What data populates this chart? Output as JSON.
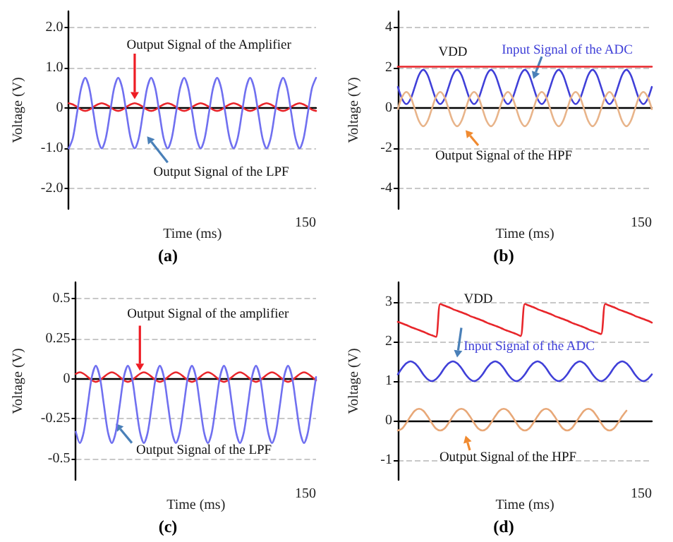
{
  "chart_data": [
    {
      "type": "line",
      "title": "(a)",
      "xlabel": "Time (ms)",
      "ylabel": "Voltage (V)",
      "annotations": [
        "150"
      ],
      "ylim": [
        -2.5,
        2.4
      ],
      "yticks": [
        {
          "value": 2,
          "label": "2.0"
        },
        {
          "value": 1,
          "label": "1.0"
        },
        0,
        {
          "value": -1,
          "label": "-1.0"
        },
        {
          "value": -2,
          "label": "-2.0"
        }
      ],
      "grid": "y",
      "categories": [
        null,
        null,
        null,
        null,
        null,
        null,
        null,
        null,
        null,
        null,
        null,
        null,
        null,
        null,
        null,
        null,
        null,
        null,
        null,
        null,
        null,
        null,
        null,
        null,
        null,
        null,
        null,
        null,
        null,
        null,
        null,
        null,
        null,
        null,
        null,
        null,
        null,
        null,
        null,
        null,
        null,
        null,
        null,
        null,
        null,
        null,
        null,
        null,
        null,
        null,
        null,
        null,
        null,
        null,
        null,
        null,
        null,
        null,
        null,
        null,
        null
      ],
      "series": [
        {
          "name": "Output Signal of the Amplifier",
          "color": "#e8262b",
          "values": [
            0.12,
            0.09,
            0.03,
            -0.04,
            -0.07,
            -0.04,
            0.03,
            0.09,
            0.12,
            0.09,
            0.03,
            -0.04,
            -0.07,
            -0.04,
            0.03,
            0.09,
            0.12,
            0.09,
            0.03,
            -0.04,
            -0.07,
            -0.04,
            0.03,
            0.09,
            0.12,
            0.09,
            0.03,
            -0.04,
            -0.07,
            -0.04,
            0.03,
            0.09,
            0.12,
            0.09,
            0.03,
            -0.04,
            -0.07,
            -0.04,
            0.03,
            0.09,
            0.12,
            0.09,
            0.03,
            -0.04,
            -0.07,
            -0.04,
            0.03,
            0.09,
            0.12,
            0.09,
            0.03,
            -0.04,
            -0.07,
            -0.04,
            0.03,
            0.09,
            0.12,
            0.09,
            0.03,
            -0.04,
            -0.07
          ]
        },
        {
          "name": "Output Signal of the LPF",
          "color": "#7070f0",
          "values": [
            -1.0,
            -0.74,
            -0.13,
            0.49,
            0.75,
            0.49,
            -0.13,
            -0.74,
            -1.0,
            -0.74,
            -0.13,
            0.49,
            0.75,
            0.49,
            -0.13,
            -0.74,
            -1.0,
            -0.74,
            -0.13,
            0.49,
            0.75,
            0.49,
            -0.13,
            -0.74,
            -1.0,
            -0.74,
            -0.13,
            0.49,
            0.75,
            0.49,
            -0.13,
            -0.74,
            -1.0,
            -0.74,
            -0.13,
            0.49,
            0.75,
            0.49,
            -0.13,
            -0.74,
            -1.0,
            -0.74,
            -0.13,
            0.49,
            0.75,
            0.49,
            -0.13,
            -0.74,
            -1.0,
            -0.74,
            -0.13,
            0.49,
            0.75,
            0.49,
            -0.13,
            -0.74,
            -1.0,
            -0.74,
            -0.13,
            0.49,
            0.75
          ]
        }
      ]
    },
    {
      "type": "line",
      "title": "(b)",
      "xlabel": "Time (ms)",
      "ylabel": "Voltage (V)",
      "annotations": [
        "150"
      ],
      "ylim": [
        -5,
        4.8
      ],
      "yticks": [
        4,
        2,
        0,
        -2,
        -4
      ],
      "grid": "y",
      "categories": [
        null,
        null,
        null,
        null,
        null,
        null,
        null,
        null,
        null,
        null,
        null,
        null,
        null,
        null,
        null,
        null,
        null,
        null,
        null,
        null,
        null,
        null,
        null,
        null,
        null,
        null,
        null,
        null,
        null,
        null,
        null,
        null,
        null,
        null,
        null,
        null,
        null,
        null,
        null,
        null,
        null,
        null,
        null,
        null,
        null,
        null,
        null,
        null,
        null,
        null,
        null,
        null,
        null,
        null,
        null,
        null,
        null,
        null,
        null,
        null,
        null
      ],
      "series": [
        {
          "name": "VDD",
          "color": "#e8262b",
          "values": [
            2.05,
            2.05,
            2.05,
            2.05,
            2.05,
            2.05,
            2.05,
            2.05,
            2.05,
            2.05,
            2.05,
            2.05,
            2.05,
            2.05,
            2.05,
            2.05,
            2.05,
            2.05,
            2.05,
            2.05,
            2.05,
            2.05,
            2.05,
            2.05,
            2.05,
            2.05,
            2.05,
            2.05,
            2.05,
            2.05,
            2.05,
            2.05,
            2.05,
            2.05,
            2.05,
            2.05,
            2.05,
            2.05,
            2.05,
            2.05,
            2.05,
            2.05,
            2.05,
            2.05,
            2.05,
            2.05,
            2.05,
            2.05,
            2.05,
            2.05,
            2.05,
            2.05,
            2.05,
            2.05,
            2.05,
            2.05,
            2.05,
            2.05,
            2.05,
            2.05,
            2.05
          ]
        },
        {
          "name": "Input Signal of the ADC",
          "color": "#4040d8",
          "values": [
            1.05,
            0.45,
            0.2,
            0.45,
            1.05,
            1.65,
            1.9,
            1.65,
            1.05,
            0.45,
            0.2,
            0.45,
            1.05,
            1.65,
            1.9,
            1.65,
            1.05,
            0.45,
            0.2,
            0.45,
            1.05,
            1.65,
            1.9,
            1.65,
            1.05,
            0.45,
            0.2,
            0.45,
            1.05,
            1.65,
            1.9,
            1.65,
            1.05,
            0.45,
            0.2,
            0.45,
            1.05,
            1.65,
            1.9,
            1.65,
            1.05,
            0.45,
            0.2,
            0.45,
            1.05,
            1.65,
            1.9,
            1.65,
            1.05,
            0.45,
            0.2,
            0.45,
            1.05,
            1.65,
            1.9,
            1.65,
            1.05,
            0.45,
            0.2,
            0.45,
            1.05
          ]
        },
        {
          "name": "Output Signal of the HPF",
          "color": "#e8b48a",
          "values": [
            -0.05,
            0.55,
            0.8,
            0.55,
            -0.05,
            -0.65,
            -0.9,
            -0.65,
            -0.05,
            0.55,
            0.8,
            0.55,
            -0.05,
            -0.65,
            -0.9,
            -0.65,
            -0.05,
            0.55,
            0.8,
            0.55,
            -0.05,
            -0.65,
            -0.9,
            -0.65,
            -0.05,
            0.55,
            0.8,
            0.55,
            -0.05,
            -0.65,
            -0.9,
            -0.65,
            -0.05,
            0.55,
            0.8,
            0.55,
            -0.05,
            -0.65,
            -0.9,
            -0.65,
            -0.05,
            0.55,
            0.8,
            0.55,
            -0.05,
            -0.65,
            -0.9,
            -0.65,
            -0.05,
            0.55,
            0.8,
            0.55,
            -0.05,
            -0.65,
            -0.9,
            -0.65,
            -0.05,
            0.55,
            0.8,
            0.55,
            -0.05
          ]
        }
      ]
    },
    {
      "type": "line",
      "title": "(c)",
      "xlabel": "Time (ms)",
      "ylabel": "Voltage (V)",
      "annotations": [
        "150"
      ],
      "ylim": [
        -0.63,
        0.6
      ],
      "yticks": [
        0.5,
        0.25,
        0,
        -0.25,
        -0.5
      ],
      "grid": "y",
      "categories": [
        null,
        null,
        null,
        null,
        null,
        null,
        null,
        null,
        null,
        null,
        null,
        null,
        null,
        null,
        null,
        null,
        null,
        null,
        null,
        null,
        null,
        null,
        null,
        null,
        null,
        null,
        null,
        null,
        null,
        null,
        null,
        null,
        null,
        null,
        null,
        null,
        null,
        null,
        null,
        null,
        null,
        null,
        null,
        null,
        null,
        null,
        null,
        null,
        null,
        null,
        null,
        null,
        null,
        null,
        null,
        null,
        null,
        null,
        null,
        null,
        null
      ],
      "series": [
        {
          "name": "Output Signal of the amplifier",
          "color": "#e8262b",
          "values": [
            0.03,
            0.04,
            0.03,
            0.01,
            -0.01,
            -0.02,
            -0.01,
            0.01,
            0.03,
            0.04,
            0.03,
            0.01,
            -0.01,
            -0.02,
            -0.01,
            0.01,
            0.03,
            0.04,
            0.03,
            0.01,
            -0.01,
            -0.02,
            -0.01,
            0.01,
            0.03,
            0.04,
            0.03,
            0.01,
            -0.01,
            -0.02,
            -0.01,
            0.01,
            0.03,
            0.04,
            0.03,
            0.01,
            -0.01,
            -0.02,
            -0.01,
            0.01,
            0.03,
            0.04,
            0.03,
            0.01,
            -0.01,
            -0.02,
            -0.01,
            0.01,
            0.03,
            0.04,
            0.03,
            0.01,
            -0.01,
            -0.02,
            -0.01,
            0.01,
            0.03,
            0.04,
            0.03,
            0.01,
            -0.01
          ]
        },
        {
          "name": "Output Signal of the LPF",
          "color": "#7070f0",
          "values": [
            -0.33,
            -0.4,
            -0.33,
            -0.16,
            0.01,
            0.08,
            0.01,
            -0.16,
            -0.33,
            -0.4,
            -0.33,
            -0.16,
            0.01,
            0.08,
            0.01,
            -0.16,
            -0.33,
            -0.4,
            -0.33,
            -0.16,
            0.01,
            0.08,
            0.01,
            -0.16,
            -0.33,
            -0.4,
            -0.33,
            -0.16,
            0.01,
            0.08,
            0.01,
            -0.16,
            -0.33,
            -0.4,
            -0.33,
            -0.16,
            0.01,
            0.08,
            0.01,
            -0.16,
            -0.33,
            -0.4,
            -0.33,
            -0.16,
            0.01,
            0.08,
            0.01,
            -0.16,
            -0.33,
            -0.4,
            -0.33,
            -0.16,
            0.01,
            0.08,
            0.01,
            -0.16,
            -0.33,
            -0.4,
            -0.33,
            -0.16,
            0.01
          ]
        }
      ]
    },
    {
      "type": "line",
      "title": "(d)",
      "xlabel": "Time (ms)",
      "ylabel": "Voltage (V)",
      "annotations": [
        "150"
      ],
      "ylim": [
        -1.5,
        3.5
      ],
      "yticks": [
        3,
        2,
        1,
        0,
        -1
      ],
      "grid": "y",
      "categories": [
        null,
        null,
        null,
        null,
        null,
        null,
        null,
        null,
        null,
        null,
        null,
        null,
        null,
        null,
        null,
        null,
        null,
        null,
        null,
        null,
        null,
        null,
        null,
        null,
        null,
        null,
        null,
        null,
        null,
        null,
        null,
        null,
        null,
        null,
        null,
        null,
        null,
        null,
        null,
        null,
        null,
        null,
        null,
        null,
        null,
        null,
        null,
        null,
        null,
        null,
        null,
        null,
        null,
        null,
        null,
        null,
        null,
        null,
        null,
        null,
        null
      ],
      "series": [
        {
          "name": "VDD",
          "color": "#e8262b",
          "values": [
            2.5,
            2.46,
            2.42,
            2.37,
            2.33,
            2.29,
            2.25,
            2.2,
            2.16,
            2.12,
            2.95,
            2.91,
            2.87,
            2.82,
            2.78,
            2.74,
            2.7,
            2.65,
            2.61,
            2.57,
            2.53,
            2.48,
            2.44,
            2.4,
            2.36,
            2.31,
            2.27,
            2.23,
            2.19,
            2.14,
            2.95,
            2.91,
            2.87,
            2.82,
            2.78,
            2.74,
            2.7,
            2.65,
            2.61,
            2.57,
            2.53,
            2.48,
            2.44,
            2.4,
            2.36,
            2.31,
            2.27,
            2.23,
            2.19,
            2.95,
            2.91,
            2.87,
            2.82,
            2.78,
            2.74,
            2.7,
            2.65,
            2.61,
            2.57,
            2.53,
            2.48
          ]
        },
        {
          "name": "Input Signal of the ADC",
          "color": "#4040d8",
          "values": [
            1.17,
            1.33,
            1.45,
            1.5,
            1.45,
            1.33,
            1.17,
            1.05,
            1.0,
            1.05,
            1.17,
            1.33,
            1.45,
            1.5,
            1.45,
            1.33,
            1.17,
            1.05,
            1.0,
            1.05,
            1.17,
            1.33,
            1.45,
            1.5,
            1.45,
            1.33,
            1.17,
            1.05,
            1.0,
            1.05,
            1.17,
            1.33,
            1.45,
            1.5,
            1.45,
            1.33,
            1.17,
            1.05,
            1.0,
            1.05,
            1.17,
            1.33,
            1.45,
            1.5,
            1.45,
            1.33,
            1.17,
            1.05,
            1.0,
            1.05,
            1.17,
            1.33,
            1.45,
            1.5,
            1.45,
            1.33,
            1.17,
            1.05,
            1.0,
            1.05,
            1.17
          ]
        },
        {
          "name": "Output Signal of the HPF",
          "color": "#e8a878",
          "values": [
            -0.25,
            -0.2,
            -0.06,
            0.11,
            0.25,
            0.3,
            0.25,
            0.11,
            -0.06,
            -0.2,
            -0.25,
            -0.2,
            -0.06,
            0.11,
            0.25,
            0.3,
            0.25,
            0.11,
            -0.06,
            -0.2,
            -0.25,
            -0.2,
            -0.06,
            0.11,
            0.25,
            0.3,
            0.25,
            0.11,
            -0.06,
            -0.2,
            -0.25,
            -0.2,
            -0.06,
            0.11,
            0.25,
            0.3,
            0.25,
            0.11,
            -0.06,
            -0.2,
            -0.25,
            -0.2,
            -0.06,
            0.11,
            0.25,
            0.3,
            0.25,
            0.11,
            -0.06,
            -0.2,
            -0.25,
            -0.2,
            -0.06,
            0.11,
            0.25,
            null,
            null,
            null,
            null,
            null,
            null
          ]
        }
      ]
    }
  ]
}
